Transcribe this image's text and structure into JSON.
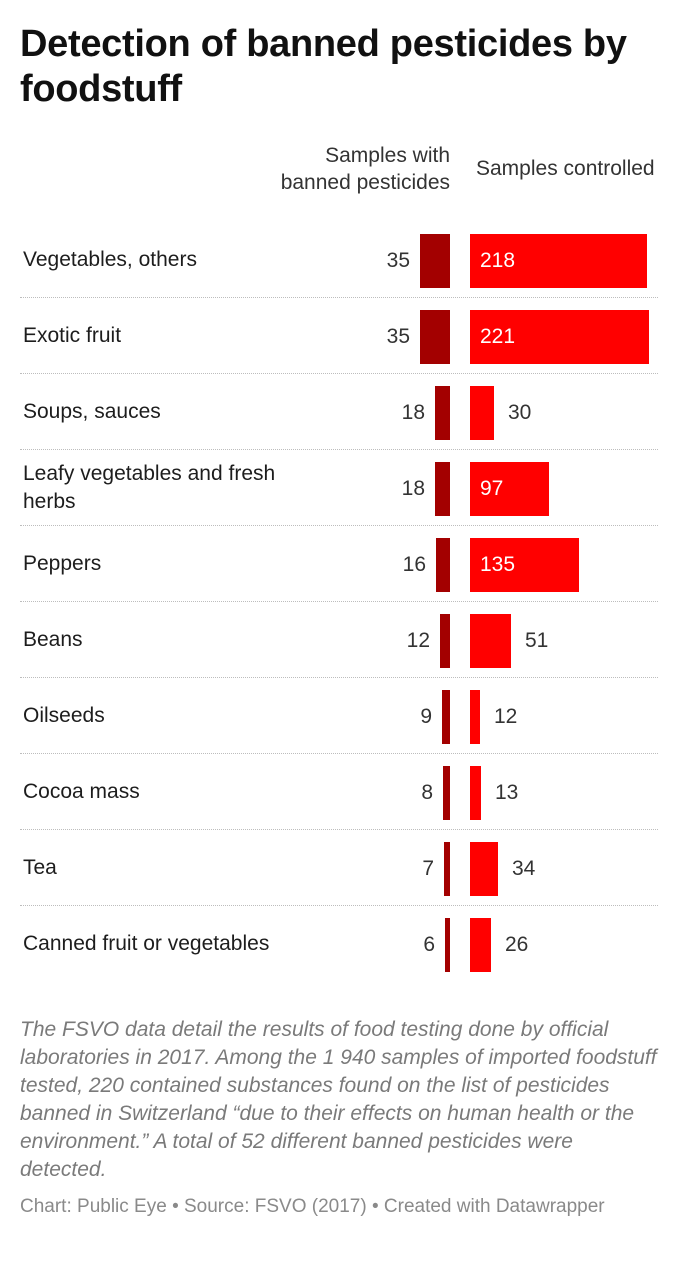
{
  "chart_data": {
    "type": "bar",
    "title": "Detection of banned pesticides by foodstuff",
    "categories": [
      "Vegetables, others",
      "Exotic fruit",
      "Soups, sauces",
      "Leafy vegetables and fresh herbs",
      "Peppers",
      "Beans",
      "Oilseeds",
      "Cocoa mass",
      "Tea",
      "Canned fruit or vegetables"
    ],
    "series": [
      {
        "name": "Samples with banned pesticides",
        "values": [
          35,
          35,
          18,
          18,
          16,
          12,
          9,
          8,
          7,
          6
        ],
        "color": "#a30000"
      },
      {
        "name": "Samples controlled",
        "values": [
          218,
          221,
          30,
          97,
          135,
          51,
          12,
          13,
          34,
          26
        ],
        "color": "#ff0000"
      }
    ],
    "notes": "The FSVO data detail the results of food testing done by official laboratories in 2017. Among the 1 940 samples of imported foodstuff tested, 220 contained substances found on the list of pesticides banned in Switzerland “due to their effects on human health or the environment.” A total of 52 different banned pesticides were detected.",
    "footer": "Chart: Public Eye • Source: FSVO (2017) • Created with Datawrapper"
  }
}
